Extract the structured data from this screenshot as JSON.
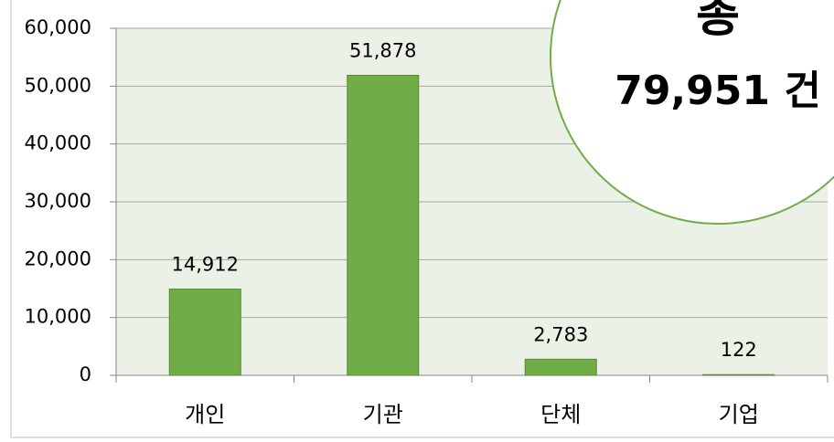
{
  "chart_data": {
    "type": "bar",
    "categories": [
      "개인",
      "기관",
      "단체",
      "기업"
    ],
    "values": [
      14912,
      51878,
      2783,
      122
    ],
    "value_labels": [
      "14,912",
      "51,878",
      "2,783",
      "122"
    ],
    "color": "#70ad47",
    "ylim": [
      0,
      60000
    ],
    "yticks": [
      0,
      {
        "value": 10000,
        "label": "10,000"
      },
      {
        "value": 20000,
        "label": "20,000"
      },
      {
        "value": 30000,
        "label": "30,000"
      },
      {
        "value": 40000,
        "label": "40,000"
      },
      {
        "value": 50000,
        "label": "50,000"
      },
      {
        "value": 60000,
        "label": "60,000"
      }
    ],
    "grid": true,
    "annotations": [
      "총",
      "79,951 건"
    ]
  }
}
